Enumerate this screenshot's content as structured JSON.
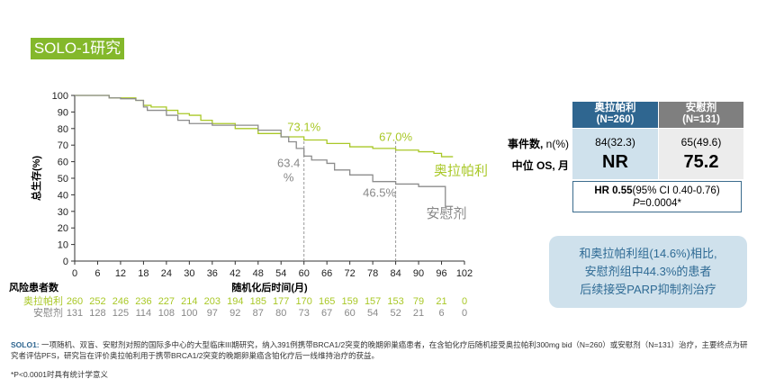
{
  "title": "SOLO-1研究",
  "colors": {
    "olaparib": "#a9c827",
    "placebo": "#8c8c8c",
    "header_blue": "#2f6690",
    "header_gray": "#7f7f7f"
  },
  "chart_data": {
    "type": "line",
    "ylabel": "总生存(%)",
    "xlabel": "随机化后时间(月)",
    "xlim": [
      0,
      102
    ],
    "ylim": [
      0,
      100
    ],
    "xticks": [
      0,
      6,
      12,
      18,
      24,
      30,
      36,
      42,
      48,
      54,
      60,
      66,
      72,
      78,
      84,
      90,
      96,
      102
    ],
    "yticks": [
      0,
      10,
      20,
      30,
      40,
      50,
      60,
      70,
      80,
      90,
      100
    ],
    "series": [
      {
        "name": "奥拉帕利",
        "color": "#a9c827",
        "points": [
          [
            0,
            100
          ],
          [
            8,
            100
          ],
          [
            9,
            98.5
          ],
          [
            12,
            98.5
          ],
          [
            16,
            97
          ],
          [
            18,
            94
          ],
          [
            20,
            93
          ],
          [
            24,
            91
          ],
          [
            27,
            89
          ],
          [
            30,
            88
          ],
          [
            33,
            85
          ],
          [
            36,
            83
          ],
          [
            42,
            80
          ],
          [
            48,
            77
          ],
          [
            54,
            75
          ],
          [
            60,
            73.1
          ],
          [
            66,
            71
          ],
          [
            72,
            69
          ],
          [
            78,
            68
          ],
          [
            84,
            67
          ],
          [
            88,
            67
          ],
          [
            90,
            66
          ],
          [
            94,
            65
          ],
          [
            96,
            63
          ],
          [
            99,
            63
          ]
        ]
      },
      {
        "name": "安慰剂",
        "color": "#8c8c8c",
        "points": [
          [
            0,
            100
          ],
          [
            8,
            100
          ],
          [
            9,
            98.5
          ],
          [
            12,
            98
          ],
          [
            16,
            97
          ],
          [
            18,
            93
          ],
          [
            19,
            91
          ],
          [
            24,
            88
          ],
          [
            27,
            85
          ],
          [
            30,
            83
          ],
          [
            36,
            82
          ],
          [
            44,
            82
          ],
          [
            48,
            79
          ],
          [
            54,
            75
          ],
          [
            56,
            72
          ],
          [
            58,
            68
          ],
          [
            60,
            63.4
          ],
          [
            62,
            61
          ],
          [
            66,
            59
          ],
          [
            68,
            55
          ],
          [
            72,
            52
          ],
          [
            78,
            48
          ],
          [
            84,
            46.5
          ],
          [
            88,
            46.5
          ],
          [
            90,
            45
          ],
          [
            96,
            45
          ],
          [
            97,
            33
          ],
          [
            99,
            33
          ]
        ]
      }
    ],
    "annotations": [
      {
        "text": "73.1%",
        "x": 60,
        "y": 73.1,
        "series": 0
      },
      {
        "text": "67.0%",
        "x": 84,
        "y": 67.0,
        "series": 0
      },
      {
        "text": "63.4",
        "text2": "%",
        "x": 60,
        "y": 63.4,
        "series": 1
      },
      {
        "text": "46.5%",
        "x": 84,
        "y": 46.5,
        "series": 1
      }
    ],
    "reference_lines_x": [
      60,
      84
    ],
    "series_labels": [
      "奥拉帕利",
      "安慰剂"
    ],
    "risk_table": {
      "title": "风险患者数",
      "rows": [
        {
          "name": "奥拉帕利",
          "values": [
            260,
            252,
            246,
            236,
            227,
            214,
            203,
            194,
            185,
            177,
            170,
            165,
            159,
            157,
            153,
            79,
            21,
            0
          ]
        },
        {
          "name": "安慰剂",
          "values": [
            131,
            128,
            125,
            114,
            108,
            100,
            97,
            92,
            87,
            80,
            73,
            67,
            60,
            54,
            52,
            21,
            6,
            0
          ]
        }
      ]
    }
  },
  "table": {
    "headers": [
      {
        "name": "奥拉帕利",
        "n": "(N=260)"
      },
      {
        "name": "安慰剂",
        "n": "(N=131)"
      }
    ],
    "row1_label_bold": "事件数,",
    "row1_label_rest": " n(%)",
    "row1": [
      "84(32.3)",
      "65(49.6)"
    ],
    "row2_label": "中位 OS, 月",
    "row2": [
      "NR",
      "75.2"
    ],
    "hr_bold": "HR 0.55",
    "hr_rest": "(95% CI 0.40-0.76)",
    "p_italic": "P",
    "p_rest": "=0.0004*"
  },
  "callout": [
    "和奥拉帕利组(14.6%)相比,",
    "安慰剂组中44.3%的患者",
    "后续接受PARP抑制剂治疗"
  ],
  "footnote": {
    "label": "SOLO1:",
    "text": " 一项随机、双盲、安慰剂对照的国际多中心的大型临床III期研究，纳入391例携带BRCA1/2突变的晚期卵巢癌患者，在含铂化疗后随机接受奥拉帕利300mg bid（N=260）或安慰剂（N=131）治疗，主要终点为研究者评估PFS，研究旨在评价奥拉帕利用于携带BRCA1/2突变的晚期卵巢癌含铂化疗后一线维持治疗的获益。",
    "note": "*P<0.0001时具有统计学意义"
  }
}
